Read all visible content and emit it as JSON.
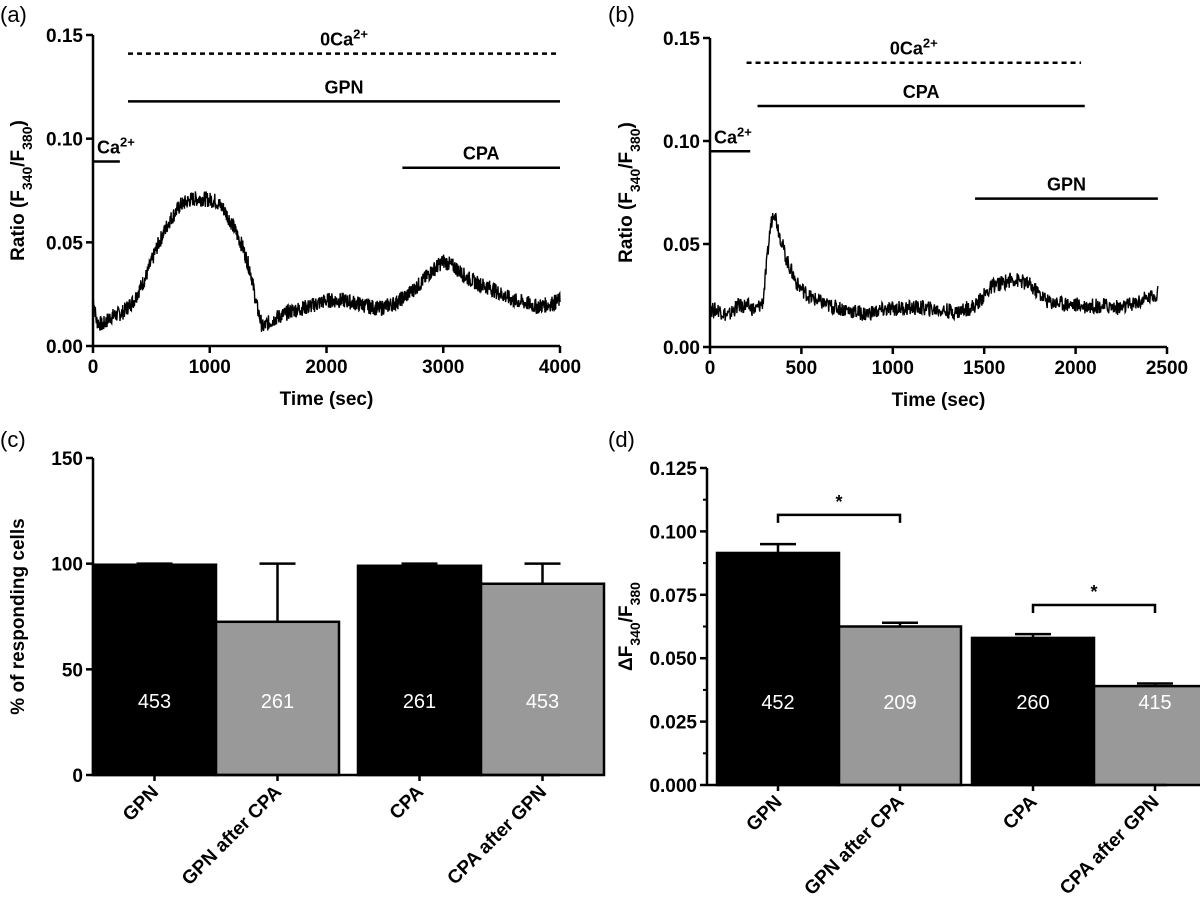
{
  "chart_data": [
    {
      "panel": "(a)",
      "type": "line",
      "xlabel": "Time (sec)",
      "ylabel": {
        "main": "Ratio (F",
        "sub1": "340",
        "mid": "/F",
        "sub2": "380",
        "end": ")"
      },
      "xlim": [
        0,
        4000
      ],
      "ylim": [
        0,
        0.15
      ],
      "xticks": [
        0,
        1000,
        2000,
        3000,
        4000
      ],
      "xtick_labels": [
        "0",
        "1000",
        "2000",
        "3000",
        "4000"
      ],
      "yticks": [
        0,
        0.05,
        0.1,
        0.15
      ],
      "ytick_labels": [
        "0.00",
        "0.05",
        "0.10",
        "0.15"
      ],
      "trace": {
        "x": [
          0,
          30,
          80,
          150,
          250,
          350,
          450,
          550,
          650,
          750,
          850,
          950,
          1050,
          1120,
          1200,
          1280,
          1350,
          1400,
          1450,
          1550,
          1700,
          1850,
          2000,
          2150,
          2300,
          2450,
          2600,
          2700,
          2800,
          2900,
          3000,
          3100,
          3200,
          3300,
          3400,
          3500,
          3600,
          3700,
          3800,
          3900,
          4000
        ],
        "y": [
          0.024,
          0.012,
          0.01,
          0.014,
          0.016,
          0.022,
          0.033,
          0.048,
          0.06,
          0.068,
          0.071,
          0.071,
          0.07,
          0.066,
          0.058,
          0.048,
          0.036,
          0.02,
          0.009,
          0.013,
          0.017,
          0.019,
          0.022,
          0.022,
          0.02,
          0.018,
          0.021,
          0.025,
          0.03,
          0.036,
          0.041,
          0.038,
          0.033,
          0.03,
          0.028,
          0.025,
          0.022,
          0.021,
          0.019,
          0.02,
          0.022
        ]
      },
      "bars": [
        {
          "label": "0Ca",
          "sup": "2+",
          "x": [
            300,
            4000
          ],
          "y": 0.141,
          "style": "dashed"
        },
        {
          "label": "GPN",
          "sup": "",
          "x": [
            300,
            4000
          ],
          "y": 0.118,
          "style": "solid"
        },
        {
          "label": "Ca",
          "sup": "2+",
          "x": [
            0,
            230
          ],
          "y": 0.089,
          "style": "solid"
        },
        {
          "label": "CPA",
          "sup": "",
          "x": [
            2650,
            4000
          ],
          "y": 0.086,
          "style": "solid"
        }
      ]
    },
    {
      "panel": "(b)",
      "type": "line",
      "xlabel": "Time (sec)",
      "ylabel": {
        "main": "Ratio (F",
        "sub1": "340",
        "mid": "/F",
        "sub2": "380",
        "end": ")"
      },
      "xlim": [
        0,
        2500
      ],
      "ylim": [
        0,
        0.15
      ],
      "xticks": [
        0,
        500,
        1000,
        1500,
        2000,
        2500
      ],
      "xtick_labels": [
        "0",
        "500",
        "1000",
        "1500",
        "2000",
        "2500"
      ],
      "yticks": [
        0,
        0.05,
        0.1,
        0.15
      ],
      "ytick_labels": [
        "0.00",
        "0.05",
        "0.10",
        "0.15"
      ],
      "trace": {
        "x": [
          0,
          50,
          100,
          150,
          200,
          250,
          290,
          310,
          330,
          350,
          380,
          420,
          480,
          550,
          650,
          750,
          850,
          950,
          1050,
          1150,
          1250,
          1350,
          1450,
          1500,
          1550,
          1600,
          1650,
          1700,
          1750,
          1800,
          1850,
          1950,
          2050,
          2150,
          2250,
          2350,
          2450
        ],
        "y": [
          0.018,
          0.018,
          0.015,
          0.02,
          0.02,
          0.018,
          0.022,
          0.04,
          0.058,
          0.067,
          0.055,
          0.042,
          0.03,
          0.024,
          0.02,
          0.018,
          0.016,
          0.018,
          0.019,
          0.019,
          0.018,
          0.017,
          0.02,
          0.025,
          0.03,
          0.031,
          0.033,
          0.032,
          0.03,
          0.026,
          0.022,
          0.021,
          0.02,
          0.02,
          0.019,
          0.022,
          0.026
        ]
      },
      "bars": [
        {
          "label": "0Ca",
          "sup": "2+",
          "x": [
            200,
            2030
          ],
          "y": 0.138,
          "style": "dashed"
        },
        {
          "label": "CPA",
          "sup": "",
          "x": [
            260,
            2050
          ],
          "y": 0.117,
          "style": "solid"
        },
        {
          "label": "Ca",
          "sup": "2+",
          "x": [
            0,
            220
          ],
          "y": 0.095,
          "style": "solid"
        },
        {
          "label": "GPN",
          "sup": "",
          "x": [
            1450,
            2450
          ],
          "y": 0.072,
          "style": "solid"
        }
      ]
    },
    {
      "panel": "(c)",
      "type": "bar",
      "ylabel": "% of responding cells",
      "ylim": [
        0,
        150
      ],
      "yticks": [
        0,
        50,
        100,
        150
      ],
      "ytick_labels": [
        "0",
        "50",
        "100",
        "150"
      ],
      "categories": [
        "GPN",
        "GPN after CPA",
        "CPA",
        "CPA after GPN"
      ],
      "values": [
        99.5,
        72.5,
        99.0,
        90.5
      ],
      "errors": [
        0.5,
        27.5,
        1.0,
        9.5
      ],
      "counts": [
        "453",
        "261",
        "261",
        "453"
      ],
      "colors": [
        "#000000",
        "#999999",
        "#000000",
        "#999999"
      ],
      "significance": []
    },
    {
      "panel": "(d)",
      "type": "bar",
      "ylabel": {
        "main": "ΔF",
        "sub1": "340",
        "mid": "/F",
        "sub2": "380"
      },
      "ylim": [
        0,
        0.125
      ],
      "yticks": [
        0,
        0.025,
        0.05,
        0.075,
        0.1,
        0.125
      ],
      "ytick_labels": [
        "0.000",
        "0.025",
        "0.050",
        "0.075",
        "0.100",
        "0.125"
      ],
      "categories": [
        "GPN",
        "GPN after CPA",
        "CPA",
        "CPA after GPN"
      ],
      "values": [
        0.0915,
        0.0625,
        0.058,
        0.039
      ],
      "errors": [
        0.0035,
        0.0015,
        0.0015,
        0.001
      ],
      "counts": [
        "452",
        "209",
        "260",
        "415"
      ],
      "colors": [
        "#000000",
        "#999999",
        "#000000",
        "#999999"
      ],
      "significance": [
        {
          "from": 0,
          "to": 1,
          "y": 0.1065,
          "label": "*"
        },
        {
          "from": 2,
          "to": 3,
          "y": 0.071,
          "label": "*"
        }
      ]
    }
  ]
}
